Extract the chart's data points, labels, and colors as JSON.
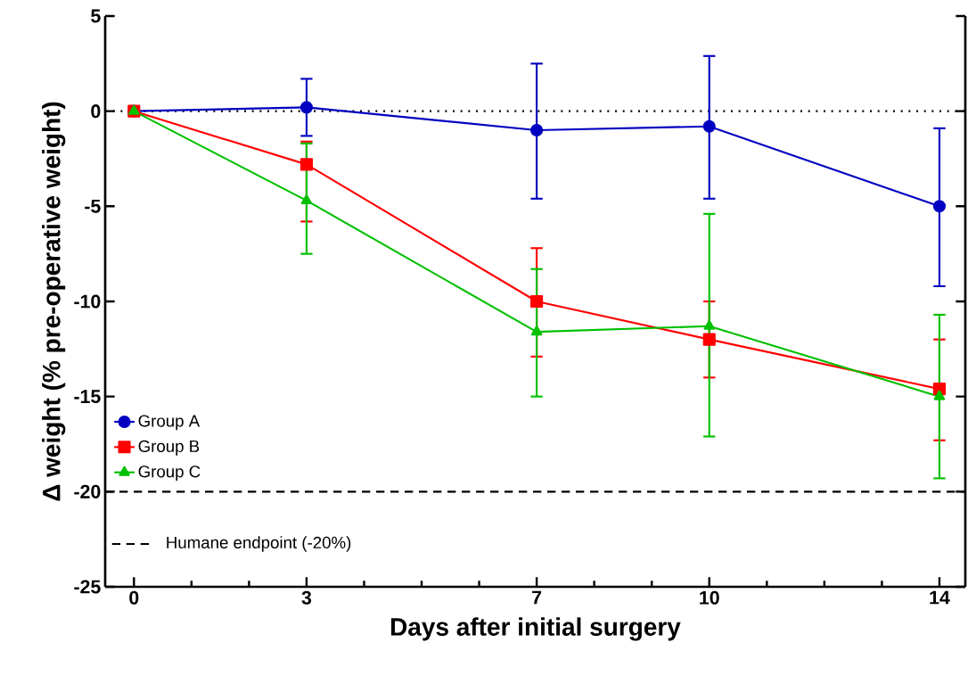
{
  "chart_data": {
    "type": "line",
    "xlabel": "Days after initial surgery",
    "ylabel": "Δ weight (% pre-operative weight)",
    "x": [
      0,
      3,
      7,
      10,
      14
    ],
    "series": [
      {
        "name": "Group A",
        "color": "#0000c0",
        "marker": "circle",
        "values": [
          0,
          0.2,
          -1.0,
          -0.8,
          -5.0
        ],
        "errors": [
          null,
          [
            -1.3,
            1.7
          ],
          [
            -4.6,
            2.5
          ],
          [
            -4.6,
            2.9
          ],
          [
            -9.2,
            -0.9
          ]
        ]
      },
      {
        "name": "Group B",
        "color": "#ff0000",
        "marker": "square",
        "values": [
          0,
          -2.8,
          -10.0,
          -12.0,
          -14.6
        ],
        "errors": [
          null,
          [
            -5.8,
            -1.6
          ],
          [
            -12.9,
            -7.2
          ],
          [
            -14.0,
            -10.0
          ],
          [
            -17.3,
            -12.0
          ]
        ]
      },
      {
        "name": "Group C",
        "color": "#00c000",
        "marker": "triangle",
        "values": [
          0,
          -4.7,
          -11.6,
          -11.3,
          -15.0
        ],
        "errors": [
          null,
          [
            -7.5,
            -1.7
          ],
          [
            -15.0,
            -8.3
          ],
          [
            -17.1,
            -5.4
          ],
          [
            -19.3,
            -10.7
          ]
        ]
      }
    ],
    "xlim": [
      -0.5,
      14.45
    ],
    "ylim": [
      -25,
      5
    ],
    "xticks": [
      0,
      {
        "value": 1,
        "label": null
      },
      {
        "value": 2,
        "label": null
      },
      3,
      {
        "value": 4,
        "label": null
      },
      {
        "value": 5,
        "label": null
      },
      {
        "value": 6,
        "label": null
      },
      7,
      {
        "value": 8,
        "label": null
      },
      {
        "value": 9,
        "label": null
      },
      10,
      {
        "value": 11,
        "label": null
      },
      {
        "value": 12,
        "label": null
      },
      {
        "value": 13,
        "label": null
      },
      14
    ],
    "yticks": [
      -25,
      -20,
      -15,
      -10,
      -5,
      0,
      5
    ],
    "ref_lines": [
      {
        "axis": "y",
        "value": 0,
        "color": "#000000",
        "line_style": "dotted"
      },
      {
        "axis": "y",
        "value": -20,
        "label": "Humane endpoint (-20%)",
        "color": "#000000",
        "line_style": "dashed"
      }
    ],
    "legend": "bottom left",
    "line_style": "solid",
    "grid": false
  }
}
